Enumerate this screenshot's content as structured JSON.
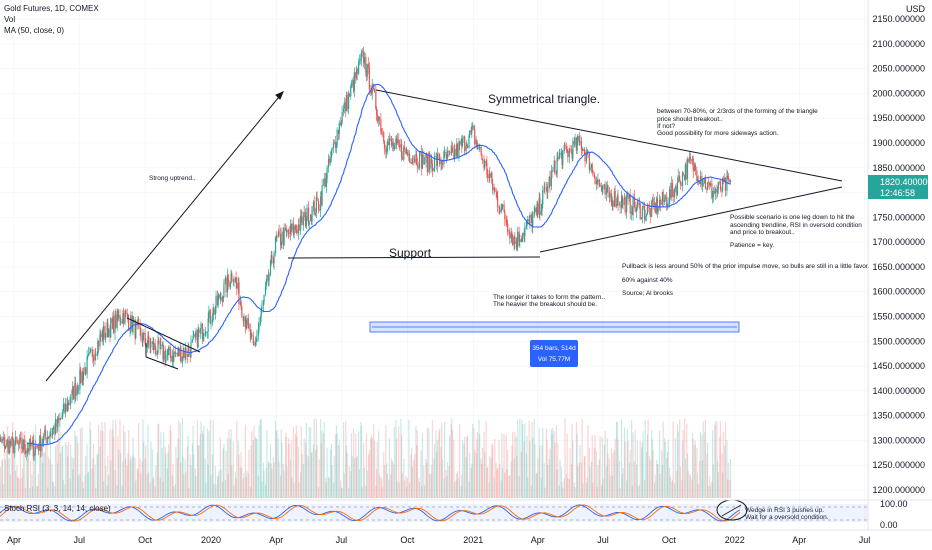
{
  "header": {
    "symbol": "Gold Futures, 1D, COMEX",
    "vol": "Vol",
    "ma": "MA (50, close, 0)"
  },
  "price_axis": {
    "currency": "USD",
    "ticks": [
      "2150.000000",
      "2100.000000",
      "2050.000000",
      "2000.000000",
      "1950.000000",
      "1900.000000",
      "1850.000000",
      "1800.000000",
      "1750.000000",
      "1700.000000",
      "1650.000000",
      "1600.000000",
      "1550.000000",
      "1500.000000",
      "1450.000000",
      "1400.000000",
      "1350.000000",
      "1300.000000",
      "1250.000000",
      "1200.000000"
    ],
    "last_price": "1820.400000",
    "countdown": "12:46:58"
  },
  "time_axis": [
    "Apr",
    "Jul",
    "Oct",
    "2020",
    "Apr",
    "Jul",
    "Oct",
    "2021",
    "Apr",
    "Jul",
    "Oct",
    "2022",
    "Apr",
    "Jul"
  ],
  "rsi": {
    "label": "Stoch RSI (3, 3, 14, 14, close)",
    "ticks": [
      "100.00",
      "0.00"
    ]
  },
  "annotations": {
    "strong_uptrend": "Strong uptrend..",
    "sym_triangle": "Symmetrical triangle.",
    "support": "Support",
    "breakout_1": "between 70-80%, or 2/3rds of the forming of the triangle",
    "breakout_2": "price should breakout..",
    "breakout_3": "If not?",
    "breakout_4": "Good possibility for more sideways action.",
    "scenario_1": "Possible scenario is one leg down to hit the",
    "scenario_2": "ascending trendline, RSI in oversold condition",
    "scenario_3": "and price to breakout..",
    "patience": "Patience = key.",
    "pullback": "Pullback is less around 50% of the prior impulse move, so bulls are still in a little favor.",
    "pct": "60% against 40%",
    "source": "Source; Al brooks",
    "longer_1": "The longer it takes to form the pattern..",
    "longer_2": "The heavier the breakout should be.",
    "range_1": "354 bars, 514d",
    "range_2": "Vol 75.77M",
    "wedge_1": "Wedge in RSI 3 pushes up.",
    "wedge_2": "Wait for a oversold condition."
  },
  "colors": {
    "up": "#26a69a",
    "down": "#ef5350",
    "ma": "#2962ff",
    "rsi_k": "#2962ff",
    "rsi_d": "#ff6d00",
    "range": "#2962ff",
    "price_label": "#26a69a"
  },
  "chart_data": {
    "type": "candlestick",
    "title": "Gold Futures, 1D, COMEX",
    "ylabel": "USD",
    "ylim": [
      1180,
      2170
    ],
    "x_ticks": [
      "Apr",
      "Jul",
      "Oct",
      "2020",
      "Apr",
      "Jul",
      "Oct",
      "2021",
      "Apr",
      "Jul",
      "Oct",
      "2022",
      "Apr",
      "Jul"
    ],
    "ma_period": 50,
    "last_price": 1820.4,
    "price_path": [
      {
        "date": "2019-03-01",
        "close": 1300
      },
      {
        "date": "2019-04-01",
        "close": 1290
      },
      {
        "date": "2019-05-01",
        "close": 1285
      },
      {
        "date": "2019-06-01",
        "close": 1330
      },
      {
        "date": "2019-07-01",
        "close": 1420
      },
      {
        "date": "2019-08-01",
        "close": 1510
      },
      {
        "date": "2019-09-01",
        "close": 1555
      },
      {
        "date": "2019-10-01",
        "close": 1500
      },
      {
        "date": "2019-11-01",
        "close": 1470
      },
      {
        "date": "2019-12-01",
        "close": 1480
      },
      {
        "date": "2020-01-01",
        "close": 1550
      },
      {
        "date": "2020-02-01",
        "close": 1640
      },
      {
        "date": "2020-03-01",
        "close": 1480
      },
      {
        "date": "2020-04-01",
        "close": 1700
      },
      {
        "date": "2020-05-01",
        "close": 1730
      },
      {
        "date": "2020-06-01",
        "close": 1780
      },
      {
        "date": "2020-07-01",
        "close": 1950
      },
      {
        "date": "2020-08-01",
        "close": 2075
      },
      {
        "date": "2020-09-01",
        "close": 1900
      },
      {
        "date": "2020-10-01",
        "close": 1880
      },
      {
        "date": "2020-11-01",
        "close": 1860
      },
      {
        "date": "2020-12-01",
        "close": 1870
      },
      {
        "date": "2021-01-01",
        "close": 1920
      },
      {
        "date": "2021-02-01",
        "close": 1800
      },
      {
        "date": "2021-03-01",
        "close": 1700
      },
      {
        "date": "2021-04-01",
        "close": 1760
      },
      {
        "date": "2021-05-01",
        "close": 1870
      },
      {
        "date": "2021-06-01",
        "close": 1900
      },
      {
        "date": "2021-07-01",
        "close": 1800
      },
      {
        "date": "2021-08-01",
        "close": 1780
      },
      {
        "date": "2021-09-01",
        "close": 1760
      },
      {
        "date": "2021-10-01",
        "close": 1790
      },
      {
        "date": "2021-11-01",
        "close": 1860
      },
      {
        "date": "2021-12-01",
        "close": 1800
      },
      {
        "date": "2021-12-28",
        "close": 1820
      }
    ]
  }
}
